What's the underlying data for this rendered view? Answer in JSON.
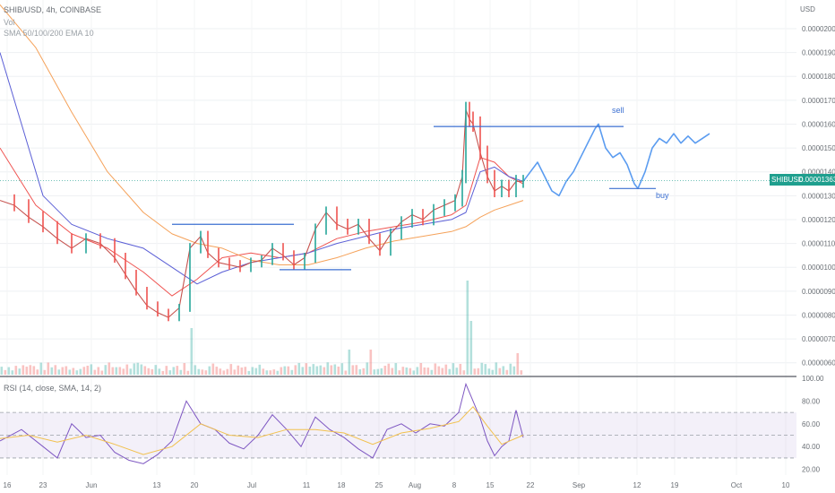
{
  "header": {
    "symbol_line": "SHIB/USD, 4h, COINBASE",
    "vol_label": "Vol",
    "ma_line": "SMA 50/100/200 EMA 10",
    "currency": "USD"
  },
  "price_tag": {
    "symbol": "SHIBUSD",
    "value": "0.00001363"
  },
  "rsi_panel": {
    "legend": "RSI (14, close, SMA, 14, 2)"
  },
  "annotations": {
    "sell": "sell",
    "buy": "buy"
  },
  "colors": {
    "up": "#26a69a",
    "down": "#ef5350",
    "projection": "#5b9cf0",
    "sma50": "#ef5350",
    "sma100": "#5b5fd6",
    "sma200": "#f5a25a",
    "rsi": "#7e57c2",
    "rsi_ma": "#f2c14e",
    "levels": "#3b6fd1"
  },
  "chart_data": [
    {
      "type": "line",
      "title": "SHIB/USD, 4h, COINBASE",
      "y_axis_unit": "USD",
      "ylim": [
        5.5e-06,
        2.12e-05
      ],
      "y_ticks": [
        "0.00002000",
        "0.00001900",
        "0.00001800",
        "0.00001700",
        "0.00001600",
        "0.00001500",
        "0.00001400",
        "0.00001300",
        "0.00001200",
        "0.00001100",
        "0.00001000",
        "0.00000900",
        "0.00000800",
        "0.00000700",
        "0.00000600"
      ],
      "x_ticks": [
        "16",
        "23",
        "Jun",
        "13",
        "20",
        "Jul",
        "11",
        "18",
        "25",
        "Aug",
        "8",
        "15",
        "22",
        "Sep",
        "12",
        "19",
        "Oct",
        "10"
      ],
      "series": [
        {
          "name": "SHIB/USD",
          "points": [
            [
              0,
              1.28e-05
            ],
            [
              4,
              1.26e-05
            ],
            [
              8,
              1.21e-05
            ],
            [
              12,
              1.17e-05
            ],
            [
              16,
              1.12e-05
            ],
            [
              20,
              1.08e-05
            ],
            [
              24,
              1.12e-05
            ],
            [
              28,
              1.1e-05
            ],
            [
              32,
              1.04e-05
            ],
            [
              35,
              9.7e-06
            ],
            [
              38,
              9e-06
            ],
            [
              41,
              8.4e-06
            ],
            [
              44,
              8.1e-06
            ],
            [
              47,
              7.9e-06
            ],
            [
              50,
              8.3e-06
            ],
            [
              53,
              1.08e-05
            ],
            [
              56,
              1.13e-05
            ],
            [
              58,
              1.06e-05
            ],
            [
              61,
              1.02e-05
            ],
            [
              64,
              1.01e-05
            ],
            [
              67,
              1e-05
            ],
            [
              70,
              1.02e-05
            ],
            [
              73,
              1.03e-05
            ],
            [
              76,
              1.08e-05
            ],
            [
              79,
              1.05e-05
            ],
            [
              82,
              1.01e-05
            ],
            [
              85,
              1.04e-05
            ],
            [
              88,
              1.16e-05
            ],
            [
              91,
              1.23e-05
            ],
            [
              94,
              1.18e-05
            ],
            [
              97,
              1.16e-05
            ],
            [
              100,
              1.18e-05
            ],
            [
              103,
              1.12e-05
            ],
            [
              106,
              1.07e-05
            ],
            [
              109,
              1.14e-05
            ],
            [
              112,
              1.19e-05
            ],
            [
              115,
              1.22e-05
            ],
            [
              118,
              1.2e-05
            ],
            [
              121,
              1.24e-05
            ],
            [
              124,
              1.26e-05
            ],
            [
              127,
              1.28e-05
            ],
            [
              129,
              1.38e-05
            ],
            [
              130,
              1.66e-05
            ],
            [
              131,
              1.62e-05
            ],
            [
              132,
              1.6e-05
            ],
            [
              134,
              1.48e-05
            ],
            [
              136,
              1.38e-05
            ],
            [
              138,
              1.32e-05
            ],
            [
              140,
              1.34e-05
            ],
            [
              142,
              1.32e-05
            ],
            [
              144,
              1.36e-05
            ],
            [
              146,
              1.36e-05
            ]
          ]
        },
        {
          "name": "",
          "points": [
            [
              146,
              1.36e-05
            ],
            [
              148,
              1.4e-05
            ],
            [
              150,
              1.44e-05
            ],
            [
              152,
              1.38e-05
            ],
            [
              154,
              1.32e-05
            ],
            [
              156,
              1.3e-05
            ],
            [
              158,
              1.36e-05
            ],
            [
              160,
              1.4e-05
            ],
            [
              162,
              1.46e-05
            ],
            [
              164,
              1.52e-05
            ],
            [
              166,
              1.58e-05
            ],
            [
              167,
              1.6e-05
            ],
            [
              169,
              1.5e-05
            ],
            [
              171,
              1.46e-05
            ],
            [
              173,
              1.48e-05
            ],
            [
              175,
              1.43e-05
            ],
            [
              177,
              1.35e-05
            ],
            [
              178,
              1.33e-05
            ],
            [
              180,
              1.4e-05
            ],
            [
              182,
              1.5e-05
            ],
            [
              184,
              1.54e-05
            ],
            [
              186,
              1.52e-05
            ],
            [
              188,
              1.56e-05
            ],
            [
              190,
              1.52e-05
            ],
            [
              192,
              1.55e-05
            ],
            [
              194,
              1.52e-05
            ],
            [
              196,
              1.54e-05
            ],
            [
              198,
              1.56e-05
            ]
          ]
        },
        {
          "name": "SMA 50",
          "points": [
            [
              0,
              1.5e-05
            ],
            [
              10,
              1.26e-05
            ],
            [
              20,
              1.14e-05
            ],
            [
              30,
              1.08e-05
            ],
            [
              40,
              9.8e-06
            ],
            [
              48,
              8.8e-06
            ],
            [
              55,
              9.5e-06
            ],
            [
              62,
              1.04e-05
            ],
            [
              70,
              1.06e-05
            ],
            [
              78,
              1.04e-05
            ],
            [
              86,
              1.06e-05
            ],
            [
              94,
              1.12e-05
            ],
            [
              102,
              1.15e-05
            ],
            [
              110,
              1.17e-05
            ],
            [
              118,
              1.19e-05
            ],
            [
              126,
              1.22e-05
            ],
            [
              130,
              1.26e-05
            ],
            [
              134,
              1.46e-05
            ],
            [
              138,
              1.44e-05
            ],
            [
              142,
              1.38e-05
            ],
            [
              146,
              1.35e-05
            ]
          ]
        },
        {
          "name": "SMA 100",
          "points": [
            [
              0,
              1.9e-05
            ],
            [
              6,
              1.6e-05
            ],
            [
              12,
              1.3e-05
            ],
            [
              20,
              1.18e-05
            ],
            [
              30,
              1.12e-05
            ],
            [
              40,
              1.08e-05
            ],
            [
              48,
              1e-05
            ],
            [
              55,
              9.3e-06
            ],
            [
              62,
              9.8e-06
            ],
            [
              70,
              1.02e-05
            ],
            [
              78,
              1.04e-05
            ],
            [
              86,
              1.06e-05
            ],
            [
              94,
              1.1e-05
            ],
            [
              102,
              1.13e-05
            ],
            [
              110,
              1.16e-05
            ],
            [
              118,
              1.18e-05
            ],
            [
              126,
              1.2e-05
            ],
            [
              130,
              1.23e-05
            ],
            [
              134,
              1.4e-05
            ],
            [
              138,
              1.42e-05
            ],
            [
              142,
              1.38e-05
            ],
            [
              146,
              1.36e-05
            ]
          ]
        },
        {
          "name": "SMA 200",
          "points": [
            [
              0,
              2.1e-05
            ],
            [
              10,
              1.92e-05
            ],
            [
              20,
              1.65e-05
            ],
            [
              30,
              1.4e-05
            ],
            [
              40,
              1.23e-05
            ],
            [
              48,
              1.14e-05
            ],
            [
              55,
              1.1e-05
            ],
            [
              62,
              1.08e-05
            ],
            [
              70,
              1.03e-05
            ],
            [
              78,
              1.01e-05
            ],
            [
              86,
              1.01e-05
            ],
            [
              94,
              1.04e-05
            ],
            [
              102,
              1.08e-05
            ],
            [
              110,
              1.11e-05
            ],
            [
              118,
              1.13e-05
            ],
            [
              126,
              1.15e-05
            ],
            [
              130,
              1.17e-05
            ],
            [
              134,
              1.21e-05
            ],
            [
              138,
              1.24e-05
            ],
            [
              142,
              1.26e-05
            ],
            [
              146,
              1.28e-05
            ]
          ]
        }
      ],
      "horizontal_levels": [
        {
          "y": 1.18e-05,
          "x_start": 48,
          "x_end": 82
        },
        {
          "y": 9.9e-06,
          "x_start": 78,
          "x_end": 98
        },
        {
          "y": 1.59e-05,
          "x_start": 121,
          "x_end": 174,
          "label": "sell"
        },
        {
          "y": 1.33e-05,
          "x_start": 170,
          "x_end": 183,
          "label": "buy"
        }
      ],
      "current_price": 1.363e-05
    },
    {
      "type": "line",
      "title": "RSI (14, close, SMA, 14, 2)",
      "ylim": [
        15,
        100
      ],
      "y_ticks": [
        100,
        80,
        60,
        40,
        20
      ],
      "bands": [
        30,
        50,
        70
      ],
      "series": [
        {
          "name": "RSI",
          "points": [
            [
              0,
              45
            ],
            [
              6,
              55
            ],
            [
              12,
              40
            ],
            [
              16,
              30
            ],
            [
              20,
              60
            ],
            [
              24,
              48
            ],
            [
              28,
              50
            ],
            [
              32,
              35
            ],
            [
              36,
              28
            ],
            [
              40,
              25
            ],
            [
              44,
              33
            ],
            [
              48,
              45
            ],
            [
              52,
              80
            ],
            [
              56,
              60
            ],
            [
              60,
              55
            ],
            [
              64,
              43
            ],
            [
              68,
              38
            ],
            [
              72,
              50
            ],
            [
              76,
              68
            ],
            [
              80,
              55
            ],
            [
              84,
              40
            ],
            [
              88,
              66
            ],
            [
              92,
              55
            ],
            [
              96,
              48
            ],
            [
              100,
              38
            ],
            [
              104,
              30
            ],
            [
              108,
              55
            ],
            [
              112,
              60
            ],
            [
              116,
              52
            ],
            [
              120,
              60
            ],
            [
              124,
              58
            ],
            [
              128,
              70
            ],
            [
              130,
              95
            ],
            [
              132,
              80
            ],
            [
              134,
              65
            ],
            [
              136,
              45
            ],
            [
              138,
              32
            ],
            [
              140,
              40
            ],
            [
              142,
              45
            ],
            [
              144,
              72
            ],
            [
              146,
              48
            ]
          ]
        },
        {
          "name": "",
          "points": [
            [
              0,
              47
            ],
            [
              8,
              50
            ],
            [
              16,
              44
            ],
            [
              24,
              50
            ],
            [
              32,
              42
            ],
            [
              40,
              33
            ],
            [
              48,
              40
            ],
            [
              56,
              60
            ],
            [
              64,
              50
            ],
            [
              72,
              48
            ],
            [
              80,
              55
            ],
            [
              88,
              55
            ],
            [
              96,
              52
            ],
            [
              104,
              42
            ],
            [
              112,
              52
            ],
            [
              120,
              56
            ],
            [
              128,
              62
            ],
            [
              132,
              75
            ],
            [
              136,
              58
            ],
            [
              140,
              42
            ],
            [
              146,
              50
            ]
          ]
        }
      ]
    }
  ]
}
